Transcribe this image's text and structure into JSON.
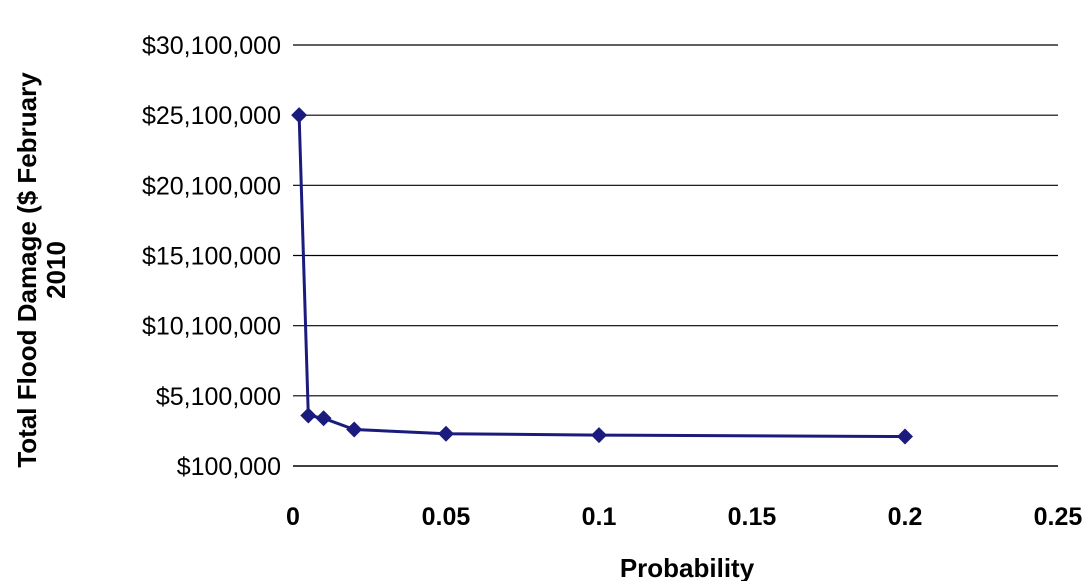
{
  "chart_data": {
    "type": "scatter",
    "line": true,
    "marker": "diamond",
    "xlabel": "Probability",
    "ylabel": [
      "Total Flood Damage ($ February",
      "2010"
    ],
    "xlim": [
      0,
      0.25
    ],
    "ylim": [
      100000,
      30100000
    ],
    "xticks": [
      "0",
      "0.05",
      "0.1",
      "0.15",
      "0.2",
      "0.25"
    ],
    "yticks": [
      "$100,000",
      "$5,100,000",
      "$10,100,000",
      "$15,100,000",
      "$20,100,000",
      "$25,100,000",
      "$30,100,000"
    ],
    "grid": "horizontal",
    "legend": "none",
    "series": [
      {
        "color": "#1b1b7e",
        "x": [
          0.002,
          0.005,
          0.01,
          0.02,
          0.05,
          0.1,
          0.2
        ],
        "y": [
          25100000,
          3700000,
          3500000,
          2700000,
          2400000,
          2300000,
          2200000
        ]
      }
    ]
  }
}
